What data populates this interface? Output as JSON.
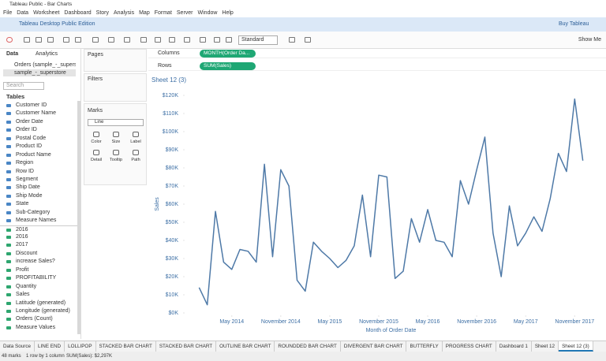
{
  "window": {
    "title": "Tableau Public - Bar Charts"
  },
  "menu": [
    "File",
    "Data",
    "Worksheet",
    "Dashboard",
    "Story",
    "Analysis",
    "Map",
    "Format",
    "Server",
    "Window",
    "Help"
  ],
  "banner": {
    "edition": "Tableau Desktop Public Edition",
    "buy": "Buy Tableau"
  },
  "toolbar": {
    "fit": "Standard",
    "show_me": "Show Me"
  },
  "data_pane": {
    "tabs": [
      "Data",
      "Analytics"
    ],
    "sources": [
      "Orders (sample_-_supers...",
      "sample_-_superstore"
    ],
    "search": "Search",
    "tables": "Tables",
    "dimensions": [
      "Customer ID",
      "Customer Name",
      "Order Date",
      "Order ID",
      "Postal Code",
      "Product ID",
      "Product Name",
      "Region",
      "Row ID",
      "Segment",
      "Ship Date",
      "Ship Mode",
      "State",
      "Sub-Category",
      "Measure Names"
    ],
    "measures": [
      "2016",
      "2016",
      "2017",
      "Discount",
      "increase Sales?",
      "Profit",
      "PROFITABILITY",
      "Quantity",
      "Sales",
      "Latitude (generated)",
      "Longitude (generated)",
      "Orders (Count)",
      "Measure Values"
    ]
  },
  "cards": {
    "pages": "Pages",
    "filters": "Filters",
    "marks": "Marks",
    "mark_type": "Line",
    "buttons": [
      "Color",
      "Size",
      "Label",
      "Detail",
      "Tooltip",
      "Path"
    ]
  },
  "shelves": {
    "columns": "Columns",
    "columns_pill": "MONTH(Order Da...",
    "rows": "Rows",
    "rows_pill": "SUM(Sales)"
  },
  "chart_data": {
    "type": "line",
    "title": "Sheet 12 (3)",
    "x_label": "Month of Order Date",
    "y_label": "Sales",
    "color": "#4e79a7",
    "grid": false,
    "x": [
      "2014-01",
      "2014-02",
      "2014-03",
      "2014-04",
      "2014-05",
      "2014-06",
      "2014-07",
      "2014-08",
      "2014-09",
      "2014-10",
      "2014-11",
      "2014-12",
      "2015-01",
      "2015-02",
      "2015-03",
      "2015-04",
      "2015-05",
      "2015-06",
      "2015-07",
      "2015-08",
      "2015-09",
      "2015-10",
      "2015-11",
      "2015-12",
      "2016-01",
      "2016-02",
      "2016-03",
      "2016-04",
      "2016-05",
      "2016-06",
      "2016-07",
      "2016-08",
      "2016-09",
      "2016-10",
      "2016-11",
      "2016-12",
      "2017-01",
      "2017-02",
      "2017-03",
      "2017-04",
      "2017-05",
      "2017-06",
      "2017-07",
      "2017-08",
      "2017-09",
      "2017-10",
      "2017-11",
      "2017-12"
    ],
    "values": [
      14000,
      4500,
      56000,
      28000,
      24000,
      35000,
      34000,
      28000,
      82000,
      31000,
      79000,
      70000,
      18000,
      12000,
      39000,
      34000,
      30000,
      25000,
      29000,
      37000,
      65000,
      31000,
      76000,
      75000,
      19000,
      23000,
      52000,
      39000,
      57000,
      40000,
      39000,
      31000,
      73000,
      60000,
      79000,
      97000,
      44000,
      20000,
      59000,
      37000,
      44000,
      53000,
      45000,
      63000,
      88000,
      78000,
      118000,
      84000
    ],
    "xlim": [
      "2013-12",
      "2018-01"
    ],
    "xticks": [
      {
        "value": "2014-05",
        "label": "May 2014"
      },
      {
        "value": "2014-11",
        "label": "November 2014"
      },
      {
        "value": "2015-05",
        "label": "May 2015"
      },
      {
        "value": "2015-11",
        "label": "November 2015"
      },
      {
        "value": "2016-05",
        "label": "May 2016"
      },
      {
        "value": "2016-11",
        "label": "November 2016"
      },
      {
        "value": "2017-05",
        "label": "May 2017"
      },
      {
        "value": "2017-11",
        "label": "November 2017"
      }
    ],
    "ylim": [
      0,
      120000
    ],
    "yticks": [
      {
        "value": 0,
        "label": "$0K"
      },
      {
        "value": 10000,
        "label": "$10K"
      },
      {
        "value": 20000,
        "label": "$20K"
      },
      {
        "value": 30000,
        "label": "$30K"
      },
      {
        "value": 40000,
        "label": "$40K"
      },
      {
        "value": 50000,
        "label": "$50K"
      },
      {
        "value": 60000,
        "label": "$60K"
      },
      {
        "value": 70000,
        "label": "$70K"
      },
      {
        "value": 80000,
        "label": "$80K"
      },
      {
        "value": 90000,
        "label": "$90K"
      },
      {
        "value": 100000,
        "label": "$100K"
      },
      {
        "value": 110000,
        "label": "$110K"
      },
      {
        "value": 120000,
        "label": "$120K"
      }
    ]
  },
  "sheet_tabs": [
    "Data Source",
    "LINE END",
    "LOLLIPOP",
    "STACKED BAR CHART",
    "STACKED BAR CHART",
    "OUTLINE BAR CHART",
    "ROUNDDED BAR CHART",
    "DIVERGENT BAR CHART",
    "BUTTERFLY",
    "PROGRESS CHART",
    "Dashboard 1",
    "Sheet 12",
    "Sheet 12 (3)"
  ],
  "status": [
    "48 marks",
    "1 row by 1 column",
    "SUM(Sales): $2,297K"
  ]
}
